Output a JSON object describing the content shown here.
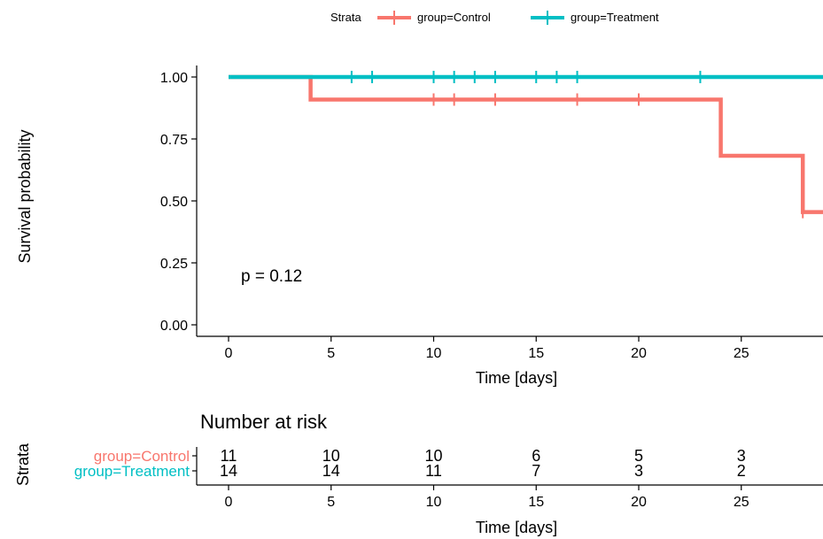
{
  "legend": {
    "title": "Strata",
    "items": [
      {
        "label": "group=Control",
        "color": "#F8766D"
      },
      {
        "label": "group=Treatment",
        "color": "#00BFC4"
      }
    ]
  },
  "chart_data": [
    {
      "type": "line",
      "subtype": "kaplan-meier step",
      "xlabel": "Time [days]",
      "ylabel": "Survival probability",
      "xlim": [
        -1,
        29
      ],
      "ylim": [
        -0.05,
        1.05
      ],
      "x_ticks": [
        "0",
        "5",
        "10",
        "15",
        "20",
        "25"
      ],
      "y_ticks": [
        "0.00",
        "0.25",
        "0.50",
        "0.75",
        "1.00"
      ],
      "annotation": "p = 0.12",
      "grid": false,
      "legend_position": "top",
      "series": [
        {
          "name": "group=Control",
          "color": "#F8766D",
          "steps": [
            [
              0,
              1.0
            ],
            [
              4,
              0.909
            ],
            [
              24,
              0.682
            ],
            [
              28,
              0.455
            ],
            [
              29,
              0.455
            ]
          ],
          "censor_times": [
            10,
            11,
            13,
            17,
            20,
            28
          ],
          "censor_value": [
            0.909,
            0.909,
            0.909,
            0.909,
            0.909,
            0.455
          ]
        },
        {
          "name": "group=Treatment",
          "color": "#00BFC4",
          "steps": [
            [
              0,
              1.0
            ],
            [
              29,
              1.0
            ]
          ],
          "censor_times": [
            6,
            7,
            10,
            11,
            12,
            13,
            15,
            16,
            17,
            23
          ],
          "censor_value": [
            1,
            1,
            1,
            1,
            1,
            1,
            1,
            1,
            1,
            1
          ]
        }
      ]
    },
    {
      "type": "table",
      "title": "Number at risk",
      "ylabel": "Strata",
      "xlabel": "Time [days]",
      "x_ticks": [
        "0",
        "5",
        "10",
        "15",
        "20",
        "25"
      ],
      "times": [
        0,
        5,
        10,
        15,
        20,
        25
      ],
      "rows": [
        {
          "name": "group=Control",
          "color": "#F8766D",
          "values": [
            "11",
            "10",
            "10",
            "6",
            "5",
            "3"
          ]
        },
        {
          "name": "group=Treatment",
          "color": "#00BFC4",
          "values": [
            "14",
            "14",
            "11",
            "7",
            "3",
            "2"
          ]
        }
      ]
    }
  ]
}
